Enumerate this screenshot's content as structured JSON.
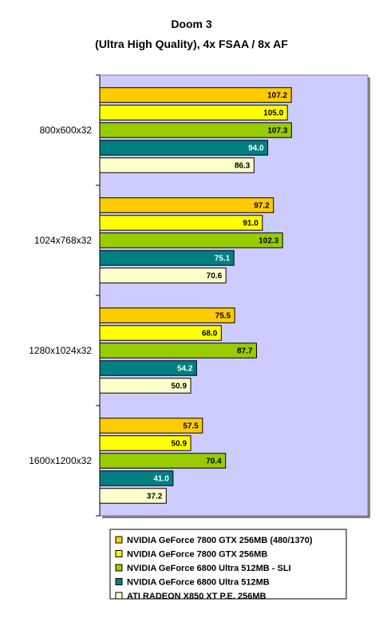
{
  "chart_data": {
    "type": "bar",
    "orientation": "horizontal",
    "title": "Doom 3",
    "subtitle": "(Ultra High Quality), 4x FSAA / 8x AF",
    "categories": [
      "800x600x32",
      "1024x768x32",
      "1280x1024x32",
      "1600x1200x32"
    ],
    "xlim": [
      0,
      150
    ],
    "grid": false,
    "legend_position": "bottom",
    "plot_background": "#ccccff",
    "series": [
      {
        "name": "NVIDIA GeForce 7800 GTX 256MB (480/1370)",
        "color": "#ffcc00",
        "label_color": "#000000",
        "values": [
          107.2,
          97.2,
          75.5,
          57.5
        ]
      },
      {
        "name": "NVIDIA GeForce 7800 GTX 256MB",
        "color": "#ffff00",
        "label_color": "#000000",
        "values": [
          105.0,
          91.0,
          68.0,
          50.9
        ]
      },
      {
        "name": "NVIDIA GeForce 6800 Ultra 512MB - SLI",
        "color": "#99cc00",
        "label_color": "#000000",
        "values": [
          107.3,
          102.3,
          87.7,
          70.4
        ]
      },
      {
        "name": "NVIDIA GeForce 6800 Ultra 512MB",
        "color": "#008080",
        "label_color": "#ffffff",
        "values": [
          94.0,
          75.1,
          54.2,
          41.0
        ]
      },
      {
        "name": "ATI RADEON X850 XT P.E. 256MB",
        "color": "#ffffcc",
        "label_color": "#000000",
        "values": [
          86.3,
          70.6,
          50.9,
          37.2
        ]
      }
    ]
  }
}
